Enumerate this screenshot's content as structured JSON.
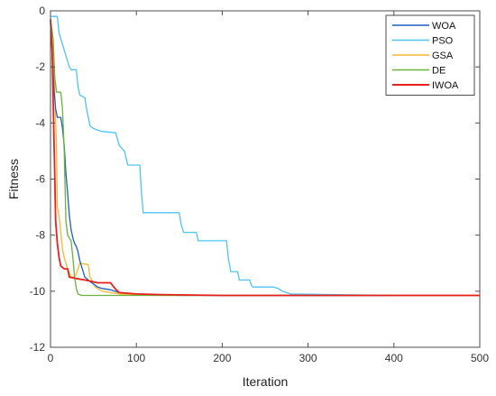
{
  "chart_data": {
    "type": "line",
    "title": "",
    "xlabel": "Iteration",
    "ylabel": "Fitness",
    "xlim": [
      0,
      500
    ],
    "ylim": [
      -12,
      0
    ],
    "xticks": [
      0,
      100,
      200,
      300,
      400,
      500
    ],
    "yticks": [
      0,
      -2,
      -4,
      -6,
      -8,
      -10,
      -12
    ],
    "grid": false,
    "legend_position": "top-right",
    "series": [
      {
        "name": "WOA",
        "color": "#1f5fbf",
        "points": [
          [
            0,
            -0.4
          ],
          [
            2,
            -1.5
          ],
          [
            4,
            -2.8
          ],
          [
            6,
            -3.5
          ],
          [
            8,
            -3.8
          ],
          [
            12,
            -3.8
          ],
          [
            14,
            -4.2
          ],
          [
            16,
            -4.8
          ],
          [
            18,
            -5.8
          ],
          [
            20,
            -6.5
          ],
          [
            22,
            -7.3
          ],
          [
            24,
            -7.8
          ],
          [
            26,
            -8.1
          ],
          [
            28,
            -8.3
          ],
          [
            30,
            -8.4
          ],
          [
            32,
            -8.6
          ],
          [
            34,
            -8.9
          ],
          [
            36,
            -9.1
          ],
          [
            38,
            -9.3
          ],
          [
            40,
            -9.5
          ],
          [
            44,
            -9.6
          ],
          [
            48,
            -9.7
          ],
          [
            55,
            -9.85
          ],
          [
            60,
            -9.9
          ],
          [
            70,
            -9.95
          ],
          [
            80,
            -10.05
          ],
          [
            100,
            -10.1
          ],
          [
            150,
            -10.15
          ],
          [
            280,
            -10.15
          ],
          [
            400,
            -10.15
          ]
        ]
      },
      {
        "name": "PSO",
        "color": "#4fc3f7",
        "points": [
          [
            0,
            -0.2
          ],
          [
            8,
            -0.2
          ],
          [
            10,
            -0.8
          ],
          [
            14,
            -1.2
          ],
          [
            18,
            -1.6
          ],
          [
            22,
            -2.0
          ],
          [
            24,
            -2.1
          ],
          [
            30,
            -2.1
          ],
          [
            32,
            -2.7
          ],
          [
            34,
            -3.0
          ],
          [
            40,
            -3.1
          ],
          [
            42,
            -3.5
          ],
          [
            44,
            -3.8
          ],
          [
            46,
            -4.1
          ],
          [
            50,
            -4.2
          ],
          [
            60,
            -4.3
          ],
          [
            76,
            -4.35
          ],
          [
            80,
            -4.8
          ],
          [
            86,
            -5.0
          ],
          [
            90,
            -5.5
          ],
          [
            104,
            -5.5
          ],
          [
            106,
            -6.5
          ],
          [
            108,
            -7.2
          ],
          [
            150,
            -7.2
          ],
          [
            152,
            -7.6
          ],
          [
            155,
            -7.9
          ],
          [
            170,
            -7.9
          ],
          [
            172,
            -8.2
          ],
          [
            205,
            -8.2
          ],
          [
            207,
            -8.8
          ],
          [
            210,
            -9.3
          ],
          [
            218,
            -9.3
          ],
          [
            220,
            -9.6
          ],
          [
            232,
            -9.6
          ],
          [
            234,
            -9.8
          ],
          [
            236,
            -9.85
          ],
          [
            260,
            -9.85
          ],
          [
            265,
            -9.9
          ],
          [
            270,
            -10.0
          ],
          [
            275,
            -10.05
          ],
          [
            280,
            -10.1
          ],
          [
            400,
            -10.15
          ]
        ]
      },
      {
        "name": "GSA",
        "color": "#f5b731",
        "points": [
          [
            0,
            -0.3
          ],
          [
            3,
            -1.0
          ],
          [
            5,
            -3.0
          ],
          [
            7,
            -5.0
          ],
          [
            8,
            -7.0
          ],
          [
            10,
            -7.3
          ],
          [
            14,
            -8.5
          ],
          [
            16,
            -8.8
          ],
          [
            18,
            -9.0
          ],
          [
            20,
            -9.2
          ],
          [
            24,
            -9.5
          ],
          [
            26,
            -9.5
          ],
          [
            30,
            -9.4
          ],
          [
            34,
            -9.0
          ],
          [
            44,
            -9.05
          ],
          [
            46,
            -9.5
          ],
          [
            50,
            -9.7
          ],
          [
            52,
            -9.85
          ],
          [
            60,
            -10.0
          ],
          [
            80,
            -10.1
          ],
          [
            120,
            -10.15
          ],
          [
            500,
            -10.15
          ]
        ]
      },
      {
        "name": "DE",
        "color": "#6ab23b",
        "points": [
          [
            0,
            -0.3
          ],
          [
            3,
            -1.0
          ],
          [
            5,
            -2.4
          ],
          [
            7,
            -2.9
          ],
          [
            12,
            -2.9
          ],
          [
            14,
            -3.5
          ],
          [
            16,
            -5.0
          ],
          [
            18,
            -7.5
          ],
          [
            20,
            -8.0
          ],
          [
            22,
            -8.1
          ],
          [
            24,
            -8.2
          ],
          [
            26,
            -8.8
          ],
          [
            28,
            -9.5
          ],
          [
            30,
            -9.9
          ],
          [
            32,
            -10.1
          ],
          [
            36,
            -10.15
          ],
          [
            500,
            -10.15
          ]
        ]
      },
      {
        "name": "IWOA",
        "color": "#e8211c",
        "points": [
          [
            0,
            -0.3
          ],
          [
            2,
            -1.5
          ],
          [
            4,
            -4.5
          ],
          [
            5,
            -6.0
          ],
          [
            6,
            -7.5
          ],
          [
            8,
            -8.3
          ],
          [
            10,
            -8.8
          ],
          [
            12,
            -9.1
          ],
          [
            16,
            -9.2
          ],
          [
            20,
            -9.2
          ],
          [
            22,
            -9.5
          ],
          [
            30,
            -9.55
          ],
          [
            40,
            -9.6
          ],
          [
            55,
            -9.7
          ],
          [
            70,
            -9.7
          ],
          [
            75,
            -9.9
          ],
          [
            80,
            -10.05
          ],
          [
            100,
            -10.1
          ],
          [
            130,
            -10.12
          ],
          [
            200,
            -10.15
          ],
          [
            500,
            -10.15
          ]
        ]
      }
    ]
  }
}
